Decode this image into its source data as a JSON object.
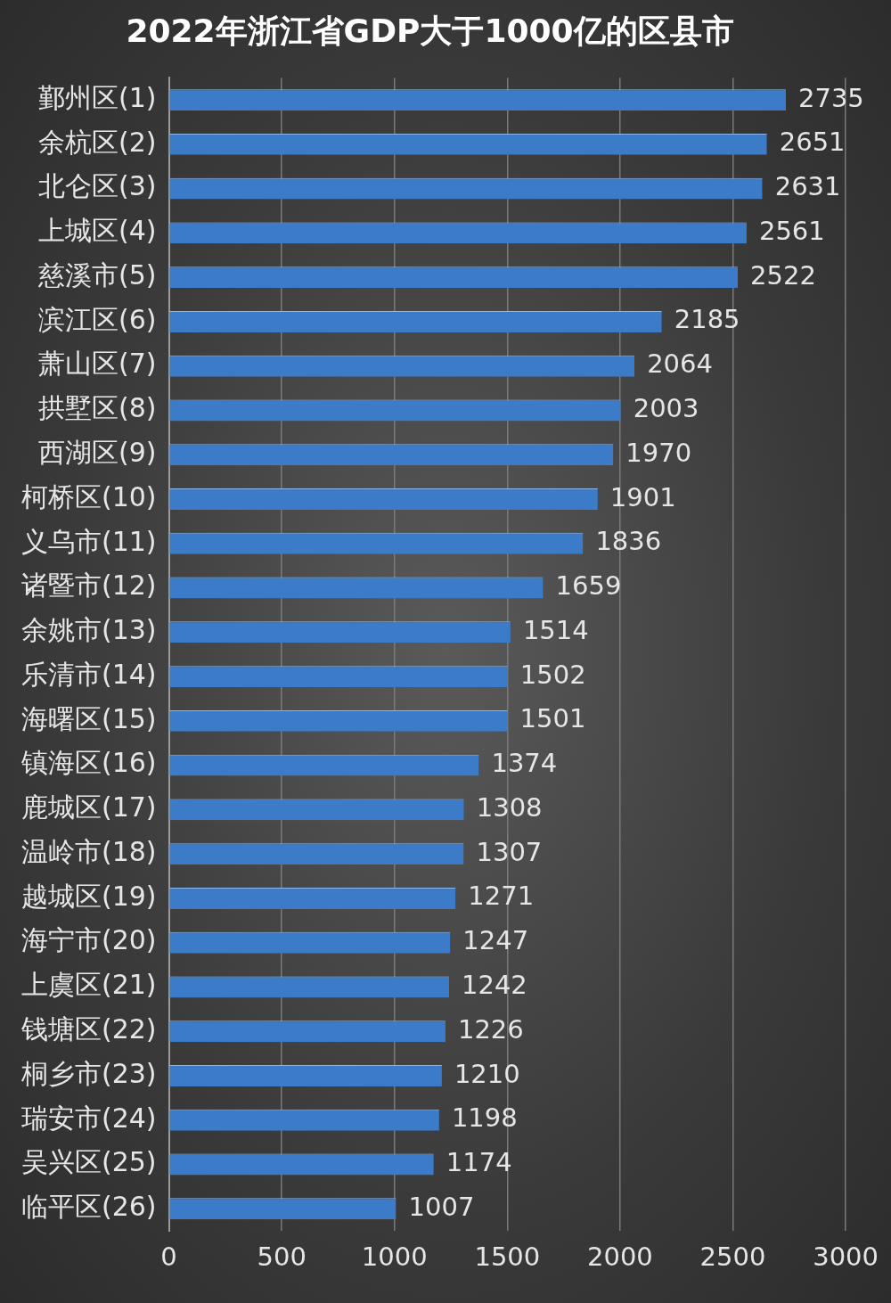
{
  "chart_data": {
    "type": "bar",
    "orientation": "horizontal",
    "title": "2022年浙江省GDP大于1000亿的区县市",
    "categories": [
      "鄞州区(1)",
      "余杭区(2)",
      "北仑区(3)",
      "上城区(4)",
      "慈溪市(5)",
      "滨江区(6)",
      "萧山区(7)",
      "拱墅区(8)",
      "西湖区(9)",
      "柯桥区(10)",
      "义乌市(11)",
      "诸暨市(12)",
      "余姚市(13)",
      "乐清市(14)",
      "海曙区(15)",
      "镇海区(16)",
      "鹿城区(17)",
      "温岭市(18)",
      "越城区(19)",
      "海宁市(20)",
      "上虞区(21)",
      "钱塘区(22)",
      "桐乡市(23)",
      "瑞安市(24)",
      "吴兴区(25)",
      "临平区(26)"
    ],
    "values": [
      2735,
      2651,
      2631,
      2561,
      2522,
      2185,
      2064,
      2003,
      1970,
      1901,
      1836,
      1659,
      1514,
      1502,
      1501,
      1374,
      1308,
      1307,
      1271,
      1247,
      1242,
      1226,
      1210,
      1198,
      1174,
      1007
    ],
    "color": "#3b7bc8",
    "xlim": [
      0,
      3000
    ],
    "xticks": [
      0,
      500,
      1000,
      1500,
      2000,
      2500,
      3000
    ],
    "grid": "x",
    "data_labels": true
  }
}
